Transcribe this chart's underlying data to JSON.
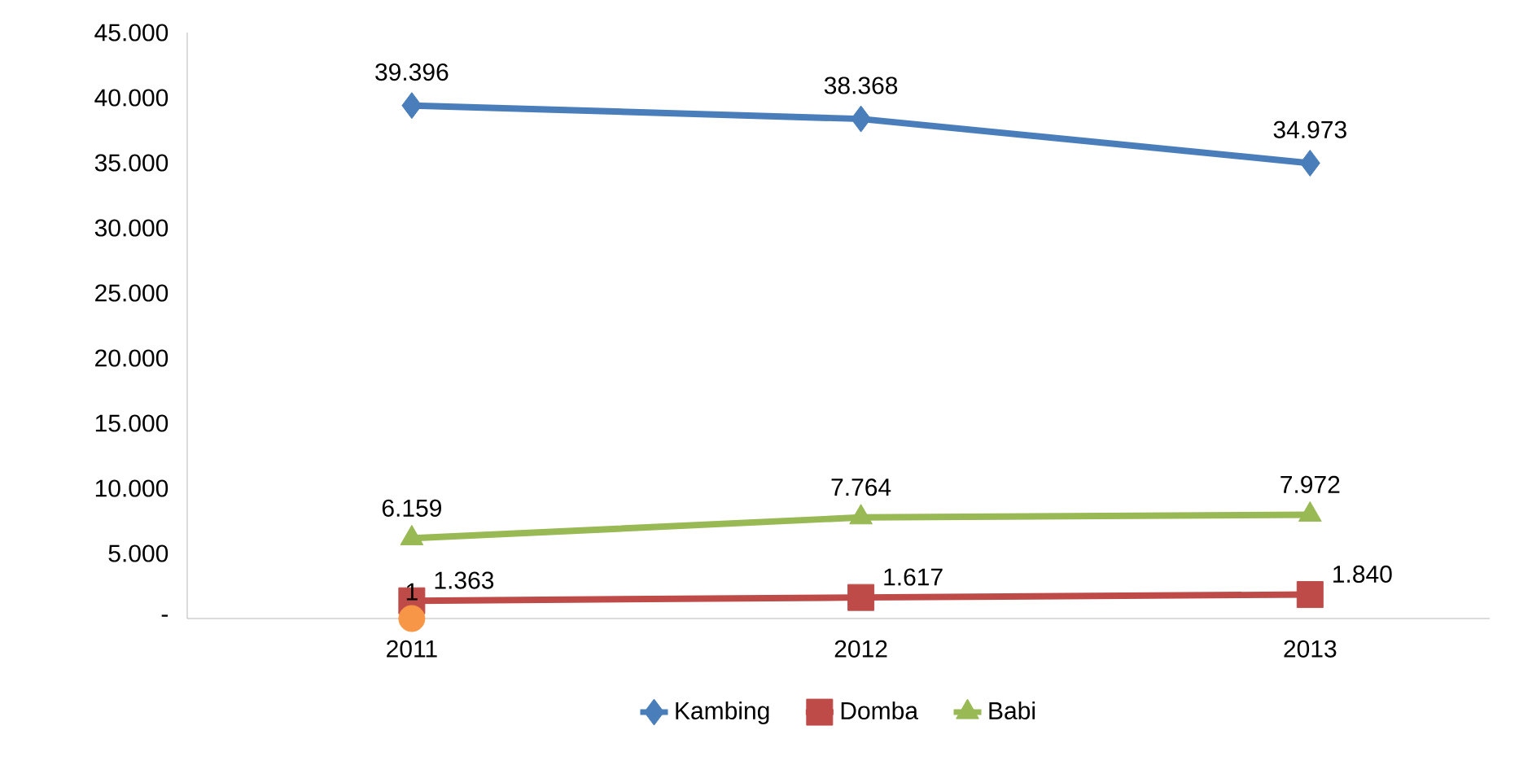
{
  "chart_data": {
    "type": "line",
    "categories": [
      "2011",
      "2012",
      "2013"
    ],
    "series": [
      {
        "name": "Kambing",
        "color": "#4a7ebb",
        "marker": "diamond",
        "values": [
          39396,
          38368,
          34973
        ],
        "value_labels": [
          "39.396",
          "38.368",
          "34.973"
        ]
      },
      {
        "name": "Domba",
        "color": "#be4b48",
        "marker": "square",
        "values": [
          1363,
          1617,
          1840
        ],
        "value_labels": [
          "1.363",
          "1.617",
          "1.840"
        ]
      },
      {
        "name": "Babi",
        "color": "#98b954",
        "marker": "triangle",
        "values": [
          6159,
          7764,
          7972
        ],
        "value_labels": [
          "6.159",
          "7.764",
          "7.972"
        ]
      },
      {
        "color": "#f79646",
        "marker": "circle",
        "values": [
          1,
          null,
          null
        ],
        "value_labels": [
          "1",
          null,
          null
        ]
      }
    ],
    "ylim": [
      0,
      45000
    ],
    "yticks": [
      {
        "value": 0,
        "label": "-"
      },
      {
        "value": 5000,
        "label": "5.000"
      },
      {
        "value": 10000,
        "label": "10.000"
      },
      {
        "value": 15000,
        "label": "15.000"
      },
      {
        "value": 20000,
        "label": "20.000"
      },
      {
        "value": 25000,
        "label": "25.000"
      },
      {
        "value": 30000,
        "label": "30.000"
      },
      {
        "value": 35000,
        "label": "35.000"
      },
      {
        "value": 40000,
        "label": "40.000"
      },
      {
        "value": 45000,
        "label": "45.000"
      }
    ],
    "grid": false,
    "legend": "bottom"
  }
}
